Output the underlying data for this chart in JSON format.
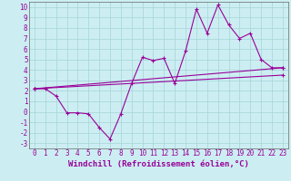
{
  "xlabel": "Windchill (Refroidissement éolien,°C)",
  "bg_color": "#cceef2",
  "grid_color": "#aad8dc",
  "line_color": "#990099",
  "spine_color": "#666666",
  "xlim": [
    -0.5,
    23.5
  ],
  "ylim": [
    -3.5,
    10.5
  ],
  "xticks": [
    0,
    1,
    2,
    3,
    4,
    5,
    6,
    7,
    8,
    9,
    10,
    11,
    12,
    13,
    14,
    15,
    16,
    17,
    18,
    19,
    20,
    21,
    22,
    23
  ],
  "yticks": [
    -3,
    -2,
    -1,
    0,
    1,
    2,
    3,
    4,
    5,
    6,
    7,
    8,
    9,
    10
  ],
  "series1_x": [
    0,
    1,
    2,
    3,
    4,
    5,
    6,
    7,
    8,
    9,
    10,
    11,
    12,
    13,
    14,
    15,
    16,
    17,
    18,
    19,
    20,
    21,
    22,
    23
  ],
  "series1_y": [
    2.2,
    2.2,
    1.5,
    -0.1,
    -0.1,
    -0.2,
    -1.5,
    -2.6,
    -0.2,
    2.7,
    5.2,
    4.9,
    5.1,
    2.7,
    5.8,
    9.8,
    7.5,
    10.2,
    8.3,
    7.0,
    7.5,
    5.0,
    4.2,
    4.2
  ],
  "series2_x": [
    0,
    23
  ],
  "series2_y": [
    2.2,
    4.2
  ],
  "series3_x": [
    0,
    23
  ],
  "series3_y": [
    2.2,
    3.5
  ],
  "tick_fontsize": 5.5,
  "label_fontsize": 6.5
}
